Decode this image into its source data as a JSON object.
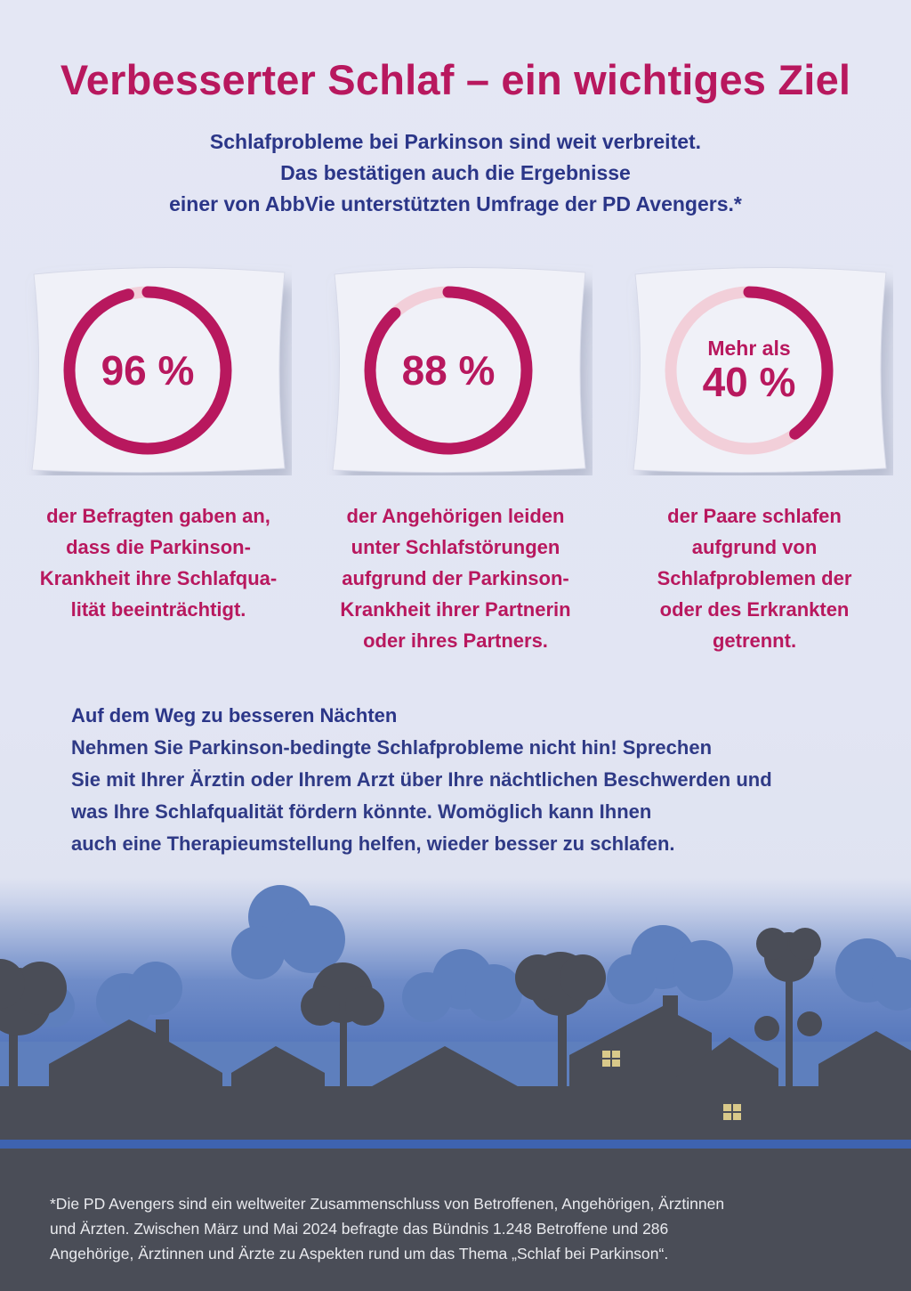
{
  "title": "Verbesserter Schlaf – ein wichtiges Ziel",
  "intro": [
    "Schlafprobleme bei Parkinson sind weit verbreitet.",
    "Das bestätigen auch die Ergebnisse",
    "einer von AbbVie unterstützten Umfrage der PD Avengers.*"
  ],
  "stats": [
    {
      "prefix": "",
      "value": "96 %",
      "fraction": 0.96,
      "caption": [
        "der Befragten gaben an,",
        "dass die Parkinson-",
        "Krankheit ihre Schlafqua-",
        "lität beeinträchtigt."
      ]
    },
    {
      "prefix": "",
      "value": "88 %",
      "fraction": 0.88,
      "caption": [
        "der Angehörigen leiden",
        "unter Schlafstörungen",
        "aufgrund der Parkinson-",
        "Krankheit ihrer Partnerin",
        "oder ihres Partners."
      ]
    },
    {
      "prefix": "Mehr als",
      "value": "40 %",
      "fraction": 0.4,
      "caption": [
        "der Paare schlafen",
        "aufgrund von",
        "Schlafproblemen der",
        "oder des Erkrankten",
        "getrennt."
      ]
    }
  ],
  "callout": {
    "heading": "Auf dem Weg zu besseren Nächten",
    "lines": [
      "Nehmen Sie Parkinson-bedingte Schlafprobleme nicht hin! Sprechen",
      "Sie mit Ihrer Ärztin oder Ihrem Arzt über Ihre nächtlichen Beschwerden und",
      "was Ihre Schlafqualität fördern könnte. Womöglich kann Ihnen",
      "auch eine Therapieumstellung helfen, wieder besser zu schlafen."
    ]
  },
  "footnote": [
    "*Die PD Avengers sind ein weltweiter Zusammenschluss von Betroffenen, Angehörigen, Ärztinnen",
    "und Ärzten. Zwischen März und Mai 2024 befragte das Bündnis 1.248 Betroffene und 286",
    "Angehörige, Ärztinnen und Ärzte zu Aspekten rund um das Thema „Schlaf bei Parkinson“."
  ],
  "colors": {
    "accent": "#b8185e",
    "ring_track": "#f2cfd9",
    "text_blue": "#2b3688",
    "silhouette": "#4a4d57",
    "window": "#d9c98a"
  },
  "icons": [
    "pillow-icon",
    "house-silhouette",
    "tree-silhouette"
  ]
}
